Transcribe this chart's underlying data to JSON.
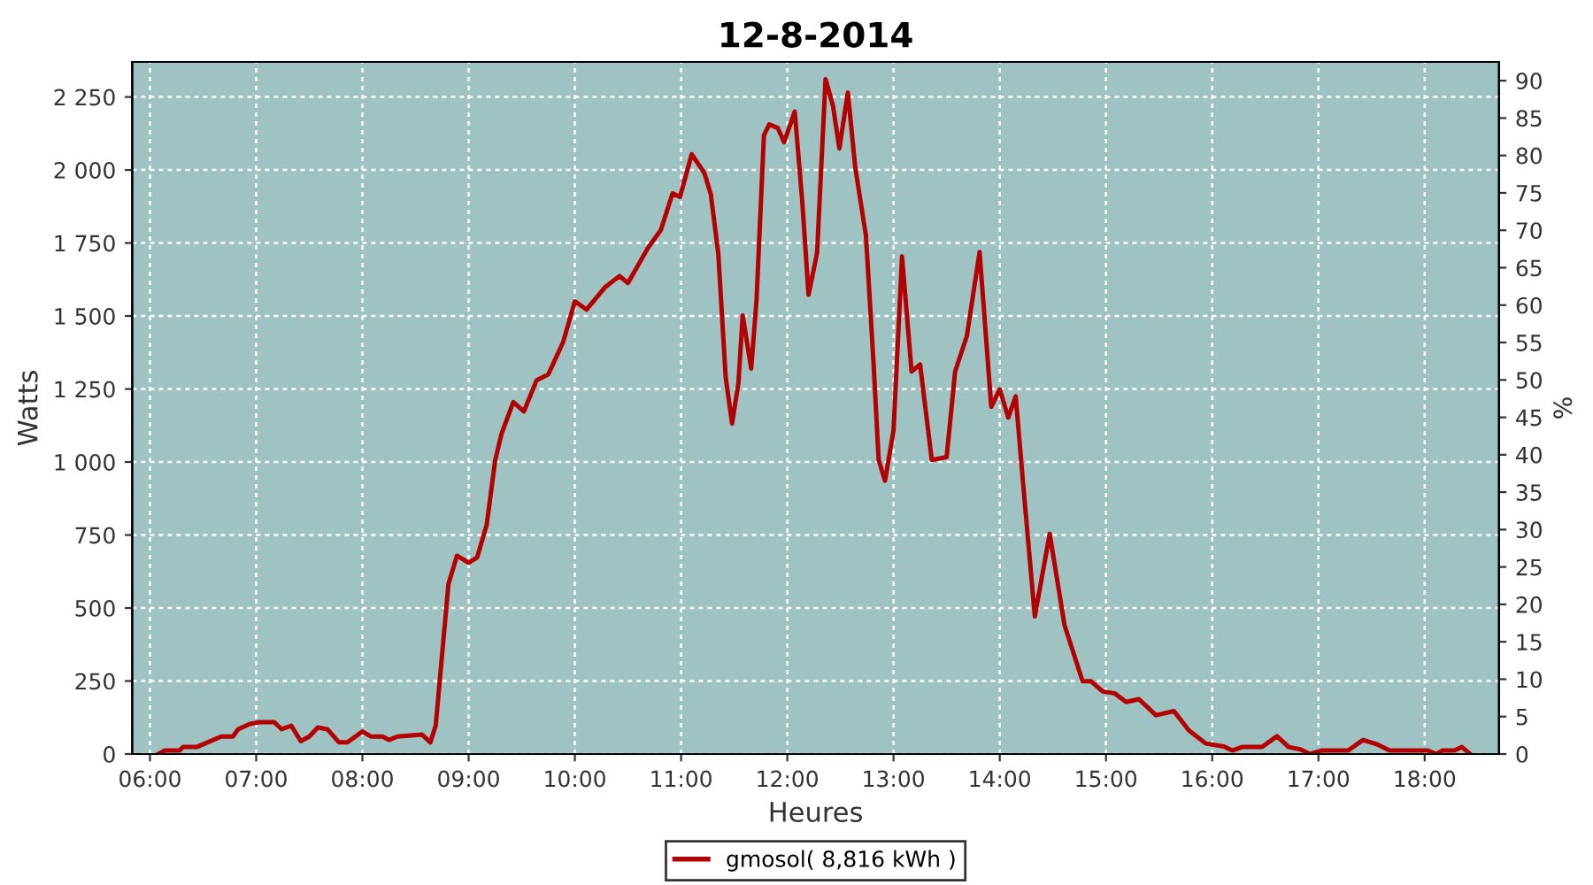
{
  "chart_data": {
    "type": "line",
    "title": "12-8-2014",
    "xlabel": "Heures",
    "ylabel": "Watts",
    "y2label": "%",
    "xlim": [
      5.833,
      18.7
    ],
    "xticks": [
      {
        "value": 6,
        "label": "06:00"
      },
      {
        "value": 7,
        "label": "07:00"
      },
      {
        "value": 8,
        "label": "08:00"
      },
      {
        "value": 9,
        "label": "09:00"
      },
      {
        "value": 10,
        "label": "10:00"
      },
      {
        "value": 11,
        "label": "11:00"
      },
      {
        "value": 12,
        "label": "12:00"
      },
      {
        "value": 13,
        "label": "13:00"
      },
      {
        "value": 14,
        "label": "14:00"
      },
      {
        "value": 15,
        "label": "15:00"
      },
      {
        "value": 16,
        "label": "16:00"
      },
      {
        "value": 17,
        "label": "17:00"
      },
      {
        "value": 18,
        "label": "18:00"
      }
    ],
    "ylim": [
      0,
      2370
    ],
    "yticks": [
      0,
      250,
      500,
      750,
      {
        "value": 1000,
        "label": "1 000"
      },
      {
        "value": 1250,
        "label": "1 250"
      },
      {
        "value": 1500,
        "label": "1 500"
      },
      {
        "value": 1750,
        "label": "1 750"
      },
      {
        "value": 2000,
        "label": "2 000"
      },
      {
        "value": 2250,
        "label": "2 250"
      }
    ],
    "y2lim": [
      0,
      92.5
    ],
    "y2ticks": [
      0,
      5,
      10,
      15,
      20,
      25,
      30,
      35,
      40,
      45,
      50,
      55,
      60,
      65,
      70,
      75,
      80,
      85,
      90
    ],
    "grid": true,
    "legend": "bottom",
    "marker": "none",
    "line_style": "solid",
    "series": [
      {
        "name": "gmosol( 8,816 kWh )",
        "color": "#b40000",
        "x": [
          6.08,
          6.14,
          6.28,
          6.31,
          6.44,
          6.67,
          6.78,
          6.83,
          6.94,
          7.03,
          7.17,
          7.24,
          7.33,
          7.42,
          7.5,
          7.58,
          7.67,
          7.78,
          7.86,
          8.0,
          8.08,
          8.19,
          8.25,
          8.33,
          8.56,
          8.64,
          8.69,
          8.75,
          8.81,
          8.89,
          9.0,
          9.08,
          9.17,
          9.25,
          9.31,
          9.42,
          9.52,
          9.64,
          9.75,
          9.89,
          10.0,
          10.11,
          10.28,
          10.42,
          10.5,
          10.69,
          10.81,
          10.92,
          10.99,
          11.1,
          11.22,
          11.28,
          11.35,
          11.42,
          11.48,
          11.54,
          11.58,
          11.66,
          11.71,
          11.78,
          11.83,
          11.91,
          11.97,
          12.07,
          12.14,
          12.2,
          12.28,
          12.36,
          12.43,
          12.49,
          12.57,
          12.64,
          12.74,
          12.81,
          12.86,
          12.92,
          13.0,
          13.08,
          13.17,
          13.25,
          13.36,
          13.5,
          13.58,
          13.69,
          13.81,
          13.92,
          14.0,
          14.08,
          14.15,
          14.22,
          14.33,
          14.47,
          14.61,
          14.78,
          14.86,
          14.97,
          15.08,
          15.19,
          15.31,
          15.47,
          15.64,
          15.78,
          15.94,
          16.11,
          16.19,
          16.28,
          16.47,
          16.61,
          16.72,
          16.83,
          16.92,
          17.03,
          17.28,
          17.42,
          17.56,
          17.67,
          18.03,
          18.11,
          18.17,
          18.28,
          18.35,
          18.43
        ],
        "values": [
          0,
          12,
          12,
          24,
          24,
          60,
          60,
          85,
          103,
          109,
          109,
          85,
          97,
          44,
          60,
          91,
          85,
          40,
          40,
          77,
          60,
          60,
          48,
          60,
          67,
          40,
          97,
          340,
          582,
          679,
          655,
          673,
          785,
          1006,
          1097,
          1205,
          1173,
          1280,
          1300,
          1411,
          1550,
          1522,
          1597,
          1637,
          1613,
          1734,
          1795,
          1920,
          1908,
          2054,
          1989,
          1917,
          1715,
          1290,
          1132,
          1270,
          1502,
          1320,
          1553,
          2119,
          2156,
          2144,
          2095,
          2200,
          1896,
          1573,
          1715,
          2311,
          2220,
          2074,
          2265,
          2008,
          1776,
          1351,
          1007,
          936,
          1108,
          1704,
          1310,
          1334,
          1007,
          1017,
          1310,
          1431,
          1719,
          1189,
          1249,
          1152,
          1225,
          926,
          471,
          754,
          441,
          249,
          249,
          214,
          208,
          178,
          188,
          133,
          147,
          81,
          36,
          26,
          12,
          24,
          24,
          61,
          24,
          16,
          0,
          12,
          12,
          48,
          32,
          12,
          12,
          0,
          12,
          12,
          24,
          0
        ]
      }
    ]
  }
}
